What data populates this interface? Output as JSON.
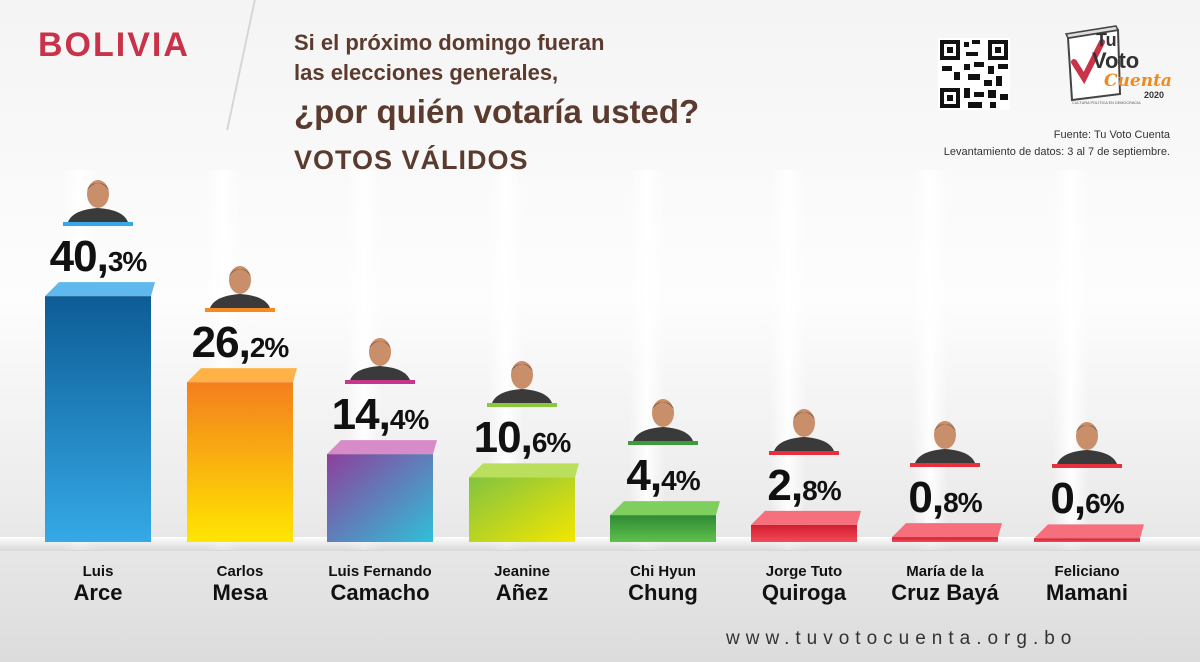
{
  "header": {
    "country": "BOLIVIA",
    "question_line1": "Si el próximo domingo fueran",
    "question_line2": "las elecciones generales,",
    "question_line3": "¿por quién votaría usted?",
    "subtitle": "VOTOS VÁLIDOS"
  },
  "logo": {
    "brand_top": "Tu",
    "brand_mid": "Voto",
    "brand_bottom": "Cuenta",
    "year": "2020",
    "tagline": "CULTURA POLÍTICA EN DEMOCRACIA"
  },
  "source": {
    "line1": "Fuente: Tu Voto Cuenta",
    "line2": "Levantamiento de datos: 3 al 7 de septiembre."
  },
  "footer": {
    "website": "www.tuvotocuenta.org.bo"
  },
  "colors": {
    "title_red": "#c8334a",
    "question_brown": "#5a3b2e",
    "candidates": [
      "#1f7fc4",
      "#f7a21c",
      "#c6368e",
      "#8cc63f",
      "#3f9a3a",
      "#e8303c",
      "#e8303c",
      "#e8303c"
    ]
  },
  "chart_data": {
    "type": "bar",
    "title": "¿por quién votaría usted?",
    "categories": [
      "Luis Arce",
      "Carlos Mesa",
      "Luis Fernando Camacho",
      "Jeanine Añez",
      "Chi Hyun Chung",
      "Jorge Tuto Quiroga",
      "María de la Cruz Bayá",
      "Feliciano Mamani"
    ],
    "values": [
      40.3,
      26.2,
      14.4,
      10.6,
      4.4,
      2.8,
      0.8,
      0.6
    ],
    "ylim": [
      0,
      45
    ],
    "grid": false,
    "legend": "none",
    "labels": [
      {
        "main": "40,",
        "dec": "3%",
        "first": "Luis",
        "last": "Arce"
      },
      {
        "main": "26,",
        "dec": "2%",
        "first": "Carlos",
        "last": "Mesa"
      },
      {
        "main": "14,",
        "dec": "4%",
        "first": "Luis Fernando",
        "last": "Camacho"
      },
      {
        "main": "10,",
        "dec": "6%",
        "first": "Jeanine",
        "last": "Añez"
      },
      {
        "main": "4,",
        "dec": "4%",
        "first": "Chi Hyun",
        "last": "Chung"
      },
      {
        "main": "2,",
        "dec": "8%",
        "first": "Jorge Tuto",
        "last": "Quiroga"
      },
      {
        "main": "0,",
        "dec": "8%",
        "first": "María de la",
        "last": "Cruz Bayá"
      },
      {
        "main": "0,",
        "dec": "6%",
        "first": "Feliciano",
        "last": "Mamani"
      }
    ]
  }
}
